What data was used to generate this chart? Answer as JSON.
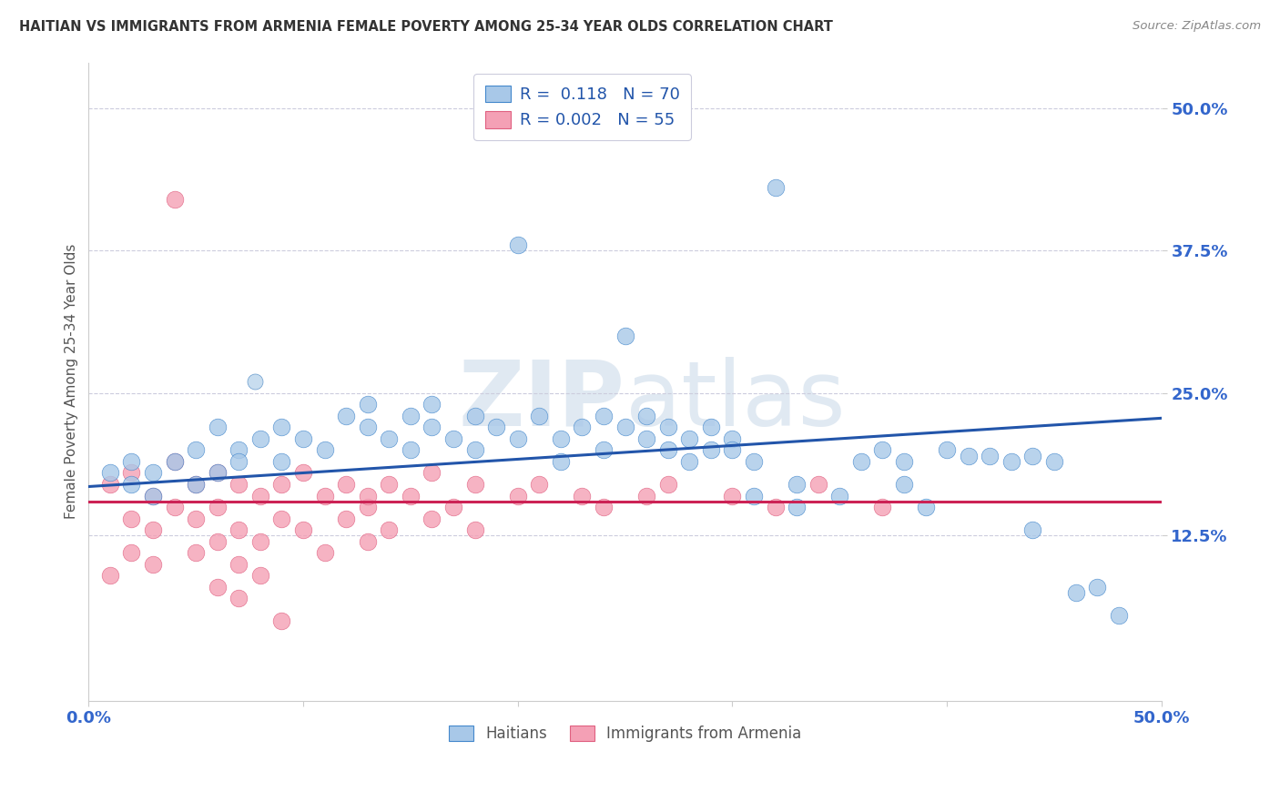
{
  "title": "HAITIAN VS IMMIGRANTS FROM ARMENIA FEMALE POVERTY AMONG 25-34 YEAR OLDS CORRELATION CHART",
  "source": "Source: ZipAtlas.com",
  "ylabel": "Female Poverty Among 25-34 Year Olds",
  "xlim": [
    0.0,
    0.5
  ],
  "ylim": [
    -0.02,
    0.54
  ],
  "color_blue": "#A8C8E8",
  "color_pink": "#F4A0B5",
  "line_color_blue": "#2255AA",
  "line_color_pink": "#CC2255",
  "background_color": "#FFFFFF",
  "grid_color": "#CCCCDD",
  "haiti_line_y0": 0.168,
  "haiti_line_y1": 0.228,
  "armenia_line_y": 0.155,
  "haitian_pts": [
    [
      0.01,
      0.18
    ],
    [
      0.02,
      0.17
    ],
    [
      0.02,
      0.19
    ],
    [
      0.03,
      0.16
    ],
    [
      0.03,
      0.18
    ],
    [
      0.04,
      0.19
    ],
    [
      0.05,
      0.17
    ],
    [
      0.05,
      0.2
    ],
    [
      0.06,
      0.18
    ],
    [
      0.06,
      0.22
    ],
    [
      0.07,
      0.2
    ],
    [
      0.07,
      0.19
    ],
    [
      0.08,
      0.21
    ],
    [
      0.09,
      0.22
    ],
    [
      0.09,
      0.19
    ],
    [
      0.1,
      0.21
    ],
    [
      0.11,
      0.2
    ],
    [
      0.12,
      0.23
    ],
    [
      0.13,
      0.22
    ],
    [
      0.13,
      0.24
    ],
    [
      0.14,
      0.21
    ],
    [
      0.15,
      0.23
    ],
    [
      0.15,
      0.2
    ],
    [
      0.16,
      0.22
    ],
    [
      0.16,
      0.24
    ],
    [
      0.17,
      0.21
    ],
    [
      0.18,
      0.23
    ],
    [
      0.18,
      0.2
    ],
    [
      0.19,
      0.22
    ],
    [
      0.2,
      0.21
    ],
    [
      0.2,
      0.38
    ],
    [
      0.21,
      0.23
    ],
    [
      0.22,
      0.21
    ],
    [
      0.22,
      0.19
    ],
    [
      0.23,
      0.22
    ],
    [
      0.24,
      0.2
    ],
    [
      0.24,
      0.23
    ],
    [
      0.25,
      0.22
    ],
    [
      0.25,
      0.3
    ],
    [
      0.26,
      0.21
    ],
    [
      0.26,
      0.23
    ],
    [
      0.27,
      0.22
    ],
    [
      0.27,
      0.2
    ],
    [
      0.28,
      0.21
    ],
    [
      0.28,
      0.19
    ],
    [
      0.29,
      0.2
    ],
    [
      0.29,
      0.22
    ],
    [
      0.3,
      0.21
    ],
    [
      0.3,
      0.2
    ],
    [
      0.31,
      0.19
    ],
    [
      0.31,
      0.16
    ],
    [
      0.32,
      0.43
    ],
    [
      0.33,
      0.15
    ],
    [
      0.33,
      0.17
    ],
    [
      0.35,
      0.16
    ],
    [
      0.36,
      0.19
    ],
    [
      0.37,
      0.2
    ],
    [
      0.38,
      0.17
    ],
    [
      0.38,
      0.19
    ],
    [
      0.39,
      0.15
    ],
    [
      0.4,
      0.2
    ],
    [
      0.41,
      0.195
    ],
    [
      0.42,
      0.195
    ],
    [
      0.43,
      0.19
    ],
    [
      0.44,
      0.195
    ],
    [
      0.44,
      0.13
    ],
    [
      0.45,
      0.19
    ],
    [
      0.46,
      0.075
    ],
    [
      0.47,
      0.08
    ],
    [
      0.48,
      0.055
    ]
  ],
  "armenia_pts": [
    [
      0.01,
      0.17
    ],
    [
      0.01,
      0.09
    ],
    [
      0.02,
      0.18
    ],
    [
      0.02,
      0.14
    ],
    [
      0.02,
      0.11
    ],
    [
      0.03,
      0.16
    ],
    [
      0.03,
      0.13
    ],
    [
      0.03,
      0.1
    ],
    [
      0.04,
      0.19
    ],
    [
      0.04,
      0.15
    ],
    [
      0.04,
      0.42
    ],
    [
      0.05,
      0.17
    ],
    [
      0.05,
      0.14
    ],
    [
      0.05,
      0.11
    ],
    [
      0.06,
      0.18
    ],
    [
      0.06,
      0.15
    ],
    [
      0.06,
      0.12
    ],
    [
      0.06,
      0.08
    ],
    [
      0.07,
      0.17
    ],
    [
      0.07,
      0.13
    ],
    [
      0.07,
      0.1
    ],
    [
      0.07,
      0.07
    ],
    [
      0.08,
      0.16
    ],
    [
      0.08,
      0.12
    ],
    [
      0.08,
      0.09
    ],
    [
      0.09,
      0.17
    ],
    [
      0.09,
      0.14
    ],
    [
      0.09,
      0.05
    ],
    [
      0.1,
      0.18
    ],
    [
      0.1,
      0.13
    ],
    [
      0.11,
      0.16
    ],
    [
      0.11,
      0.11
    ],
    [
      0.12,
      0.17
    ],
    [
      0.12,
      0.14
    ],
    [
      0.13,
      0.15
    ],
    [
      0.13,
      0.16
    ],
    [
      0.13,
      0.12
    ],
    [
      0.14,
      0.17
    ],
    [
      0.14,
      0.13
    ],
    [
      0.15,
      0.16
    ],
    [
      0.16,
      0.18
    ],
    [
      0.16,
      0.14
    ],
    [
      0.17,
      0.15
    ],
    [
      0.18,
      0.17
    ],
    [
      0.18,
      0.13
    ],
    [
      0.2,
      0.16
    ],
    [
      0.21,
      0.17
    ],
    [
      0.23,
      0.16
    ],
    [
      0.24,
      0.15
    ],
    [
      0.26,
      0.16
    ],
    [
      0.27,
      0.17
    ],
    [
      0.3,
      0.16
    ],
    [
      0.32,
      0.15
    ],
    [
      0.34,
      0.17
    ],
    [
      0.37,
      0.15
    ]
  ]
}
